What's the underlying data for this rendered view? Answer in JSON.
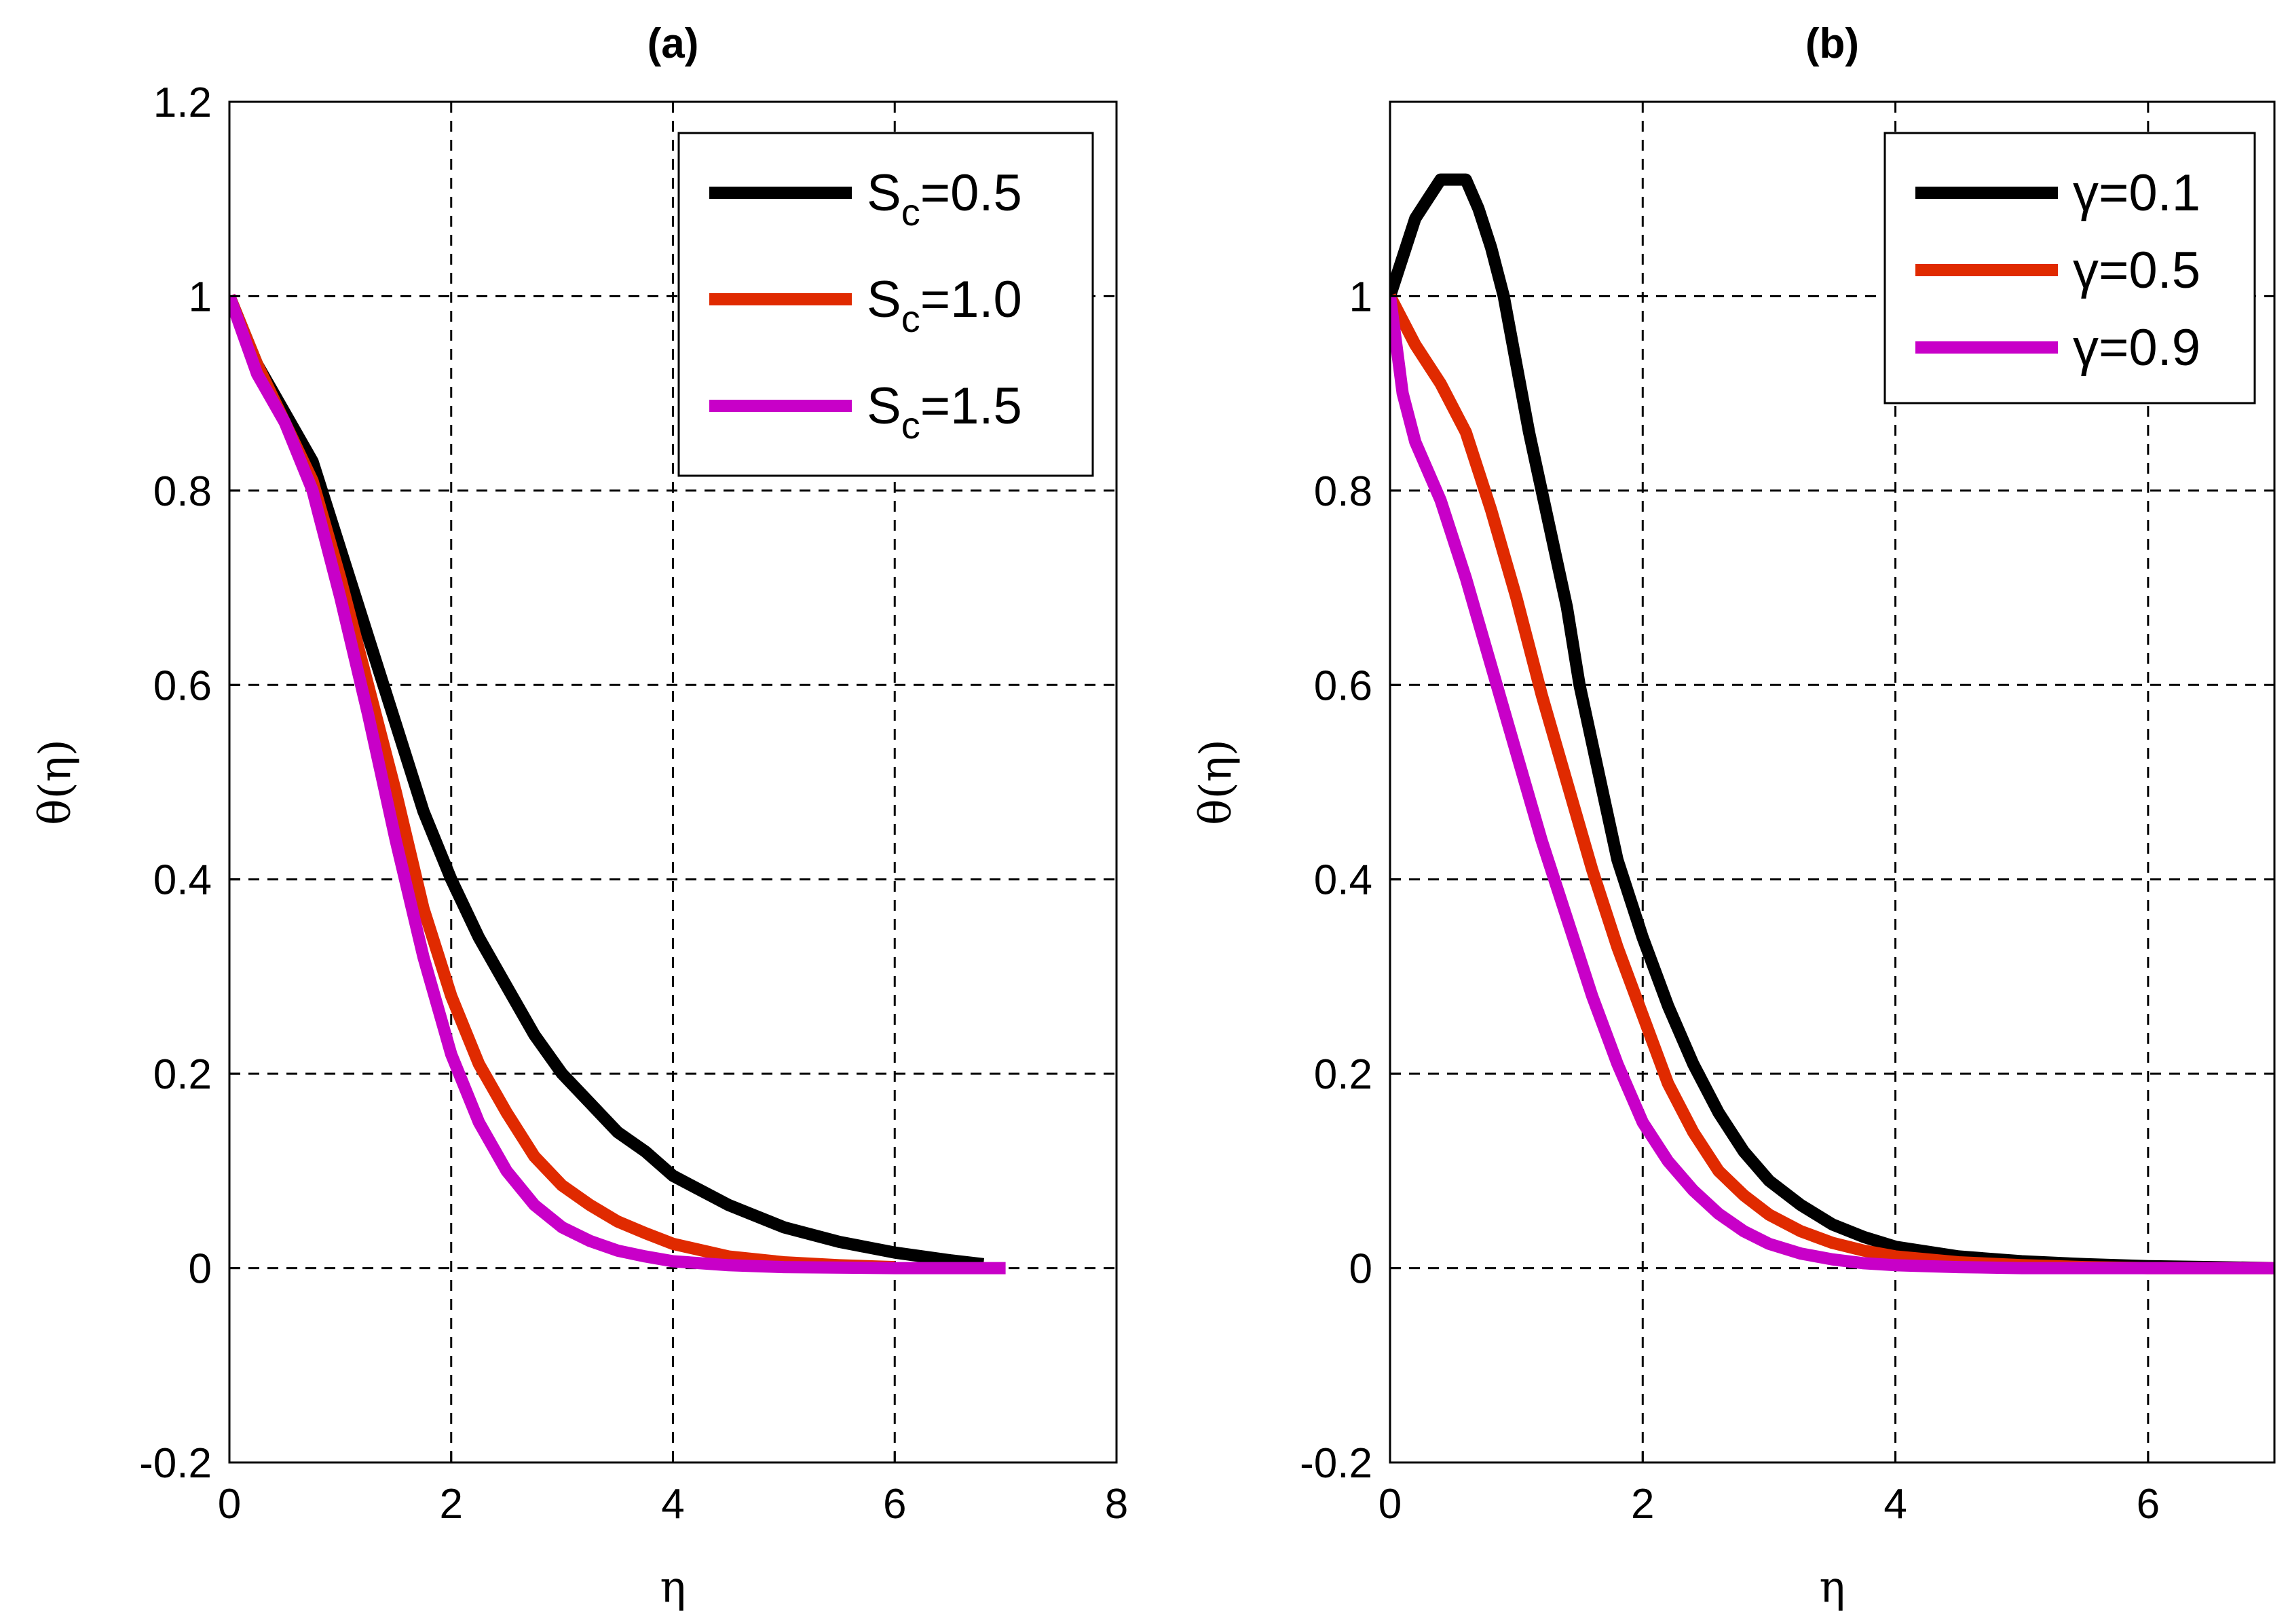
{
  "chart_data": [
    {
      "type": "line",
      "title": "(a)",
      "xlabel": "η",
      "ylabel": "θ(η)",
      "xlim": [
        0,
        8
      ],
      "ylim": [
        -0.2,
        1.2
      ],
      "xticks": [
        0,
        2,
        4,
        6,
        8
      ],
      "xtick_labels": [
        "0",
        "2",
        "4",
        "6",
        "8"
      ],
      "yticks": [
        -0.2,
        0,
        0.2,
        0.4,
        0.6,
        0.8,
        1,
        1.2
      ],
      "ytick_labels": [
        "-0.2",
        "0",
        "0.2",
        "0.4",
        "0.6",
        "0.8",
        "1",
        "1.2"
      ],
      "grid": true,
      "legend_position": "top-right",
      "series": [
        {
          "name": "Sc=0.5",
          "label_main": "S",
          "label_sub": "c",
          "label_value": "=0.5",
          "color": "#000000",
          "x": [
            0,
            0.25,
            0.5,
            0.75,
            1,
            1.25,
            1.5,
            1.75,
            2,
            2.25,
            2.5,
            2.75,
            3,
            3.25,
            3.5,
            3.75,
            4,
            4.5,
            5,
            5.5,
            6,
            6.5,
            6.8
          ],
          "y": [
            1,
            0.93,
            0.88,
            0.83,
            0.74,
            0.65,
            0.56,
            0.47,
            0.4,
            0.34,
            0.29,
            0.24,
            0.2,
            0.17,
            0.14,
            0.12,
            0.095,
            0.065,
            0.042,
            0.027,
            0.016,
            0.008,
            0.004
          ]
        },
        {
          "name": "Sc=1.0",
          "label_main": "S",
          "label_sub": "c",
          "label_value": "=1.0",
          "color": "#e02a00",
          "x": [
            0,
            0.25,
            0.5,
            0.75,
            1,
            1.25,
            1.5,
            1.75,
            2,
            2.25,
            2.5,
            2.75,
            3,
            3.25,
            3.5,
            3.75,
            4,
            4.5,
            5,
            5.5,
            6
          ],
          "y": [
            1,
            0.93,
            0.87,
            0.81,
            0.71,
            0.6,
            0.49,
            0.37,
            0.28,
            0.21,
            0.16,
            0.115,
            0.085,
            0.065,
            0.048,
            0.036,
            0.025,
            0.012,
            0.006,
            0.003,
            0.001
          ]
        },
        {
          "name": "Sc=1.5",
          "label_main": "S",
          "label_sub": "c",
          "label_value": "=1.5",
          "color": "#c800c8",
          "x": [
            0,
            0.25,
            0.5,
            0.75,
            1,
            1.25,
            1.5,
            1.75,
            2,
            2.25,
            2.5,
            2.75,
            3,
            3.25,
            3.5,
            3.75,
            4,
            4.5,
            5,
            6,
            7
          ],
          "y": [
            1,
            0.92,
            0.87,
            0.8,
            0.69,
            0.57,
            0.44,
            0.32,
            0.22,
            0.15,
            0.1,
            0.065,
            0.042,
            0.028,
            0.018,
            0.012,
            0.007,
            0.003,
            0.001,
            0,
            0
          ]
        }
      ]
    },
    {
      "type": "line",
      "title": "(b)",
      "xlabel": "η",
      "ylabel": "θ(η)",
      "xlim": [
        0,
        7
      ],
      "ylim": [
        -0.2,
        1.2
      ],
      "xticks": [
        0,
        2,
        4,
        6
      ],
      "xtick_labels": [
        "0",
        "2",
        "4",
        "6"
      ],
      "yticks": [
        -0.2,
        0,
        0.2,
        0.4,
        0.6,
        0.8,
        1
      ],
      "ytick_labels": [
        "-0.2",
        "0",
        "0.2",
        "0.4",
        "0.6",
        "0.8",
        "1"
      ],
      "grid": true,
      "legend_position": "top-right",
      "series": [
        {
          "name": "γ=0.1",
          "label_main": "γ",
          "label_sub": "",
          "label_value": "=0.1",
          "color": "#000000",
          "x": [
            0,
            0.1,
            0.2,
            0.3,
            0.4,
            0.5,
            0.6,
            0.7,
            0.8,
            0.9,
            1,
            1.1,
            1.2,
            1.3,
            1.4,
            1.5,
            1.6,
            1.7,
            1.8,
            2,
            2.2,
            2.4,
            2.6,
            2.8,
            3,
            3.25,
            3.5,
            3.75,
            4,
            4.5,
            5,
            5.5,
            6,
            6.5,
            7
          ],
          "y": [
            1,
            1.04,
            1.08,
            1.1,
            1.12,
            1.12,
            1.12,
            1.09,
            1.05,
            1.0,
            0.93,
            0.86,
            0.8,
            0.74,
            0.68,
            0.6,
            0.54,
            0.48,
            0.42,
            0.34,
            0.27,
            0.21,
            0.16,
            0.12,
            0.09,
            0.065,
            0.045,
            0.032,
            0.022,
            0.012,
            0.007,
            0.004,
            0.002,
            0.001,
            0
          ]
        },
        {
          "name": "γ=0.5",
          "label_main": "γ",
          "label_sub": "",
          "label_value": "=0.5",
          "color": "#e02a00",
          "x": [
            0,
            0.2,
            0.4,
            0.6,
            0.8,
            1,
            1.2,
            1.4,
            1.6,
            1.8,
            2,
            2.2,
            2.4,
            2.6,
            2.8,
            3,
            3.25,
            3.5,
            3.75,
            4,
            4.5,
            5,
            5.5,
            6,
            6.5,
            7
          ],
          "y": [
            1,
            0.95,
            0.91,
            0.86,
            0.78,
            0.69,
            0.59,
            0.5,
            0.41,
            0.33,
            0.26,
            0.19,
            0.14,
            0.1,
            0.075,
            0.055,
            0.038,
            0.026,
            0.018,
            0.012,
            0.006,
            0.003,
            0.001,
            0,
            0,
            0
          ]
        },
        {
          "name": "γ=0.9",
          "label_main": "γ",
          "label_sub": "",
          "label_value": "=0.9",
          "color": "#c800c8",
          "x": [
            0,
            0.1,
            0.2,
            0.4,
            0.6,
            0.8,
            1,
            1.2,
            1.4,
            1.6,
            1.8,
            2,
            2.2,
            2.4,
            2.6,
            2.8,
            3,
            3.25,
            3.5,
            3.75,
            4,
            4.5,
            5,
            5.5,
            6,
            6.5,
            7
          ],
          "y": [
            1,
            0.9,
            0.85,
            0.79,
            0.71,
            0.62,
            0.53,
            0.44,
            0.36,
            0.28,
            0.21,
            0.15,
            0.11,
            0.08,
            0.056,
            0.038,
            0.025,
            0.015,
            0.009,
            0.005,
            0.003,
            0.001,
            0,
            0,
            0,
            0,
            0
          ]
        }
      ]
    }
  ]
}
